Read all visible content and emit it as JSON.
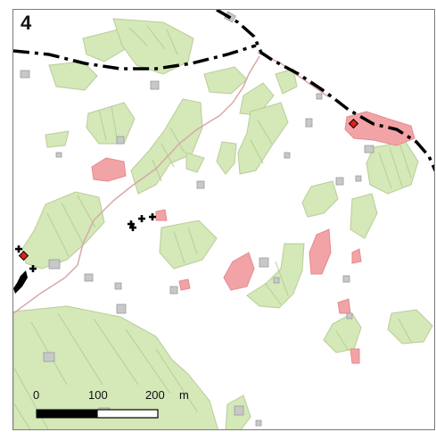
{
  "panel": {
    "label": "4"
  },
  "scale_bar": {
    "ticks": [
      "0",
      "100",
      "200"
    ],
    "unit": "m"
  },
  "colors": {
    "vegetation_fill": "#d4e8b8",
    "vegetation_edge": "#b9cd99",
    "pink_area": "#f2a3a6",
    "building": "#c8c8c8",
    "boundary_line": "#000000",
    "road_line": "#d8a8a8",
    "diamond_marker": "#e02020"
  },
  "legend_symbols": [
    "cross-marker",
    "diamond-marker",
    "dash-dot-boundary"
  ]
}
